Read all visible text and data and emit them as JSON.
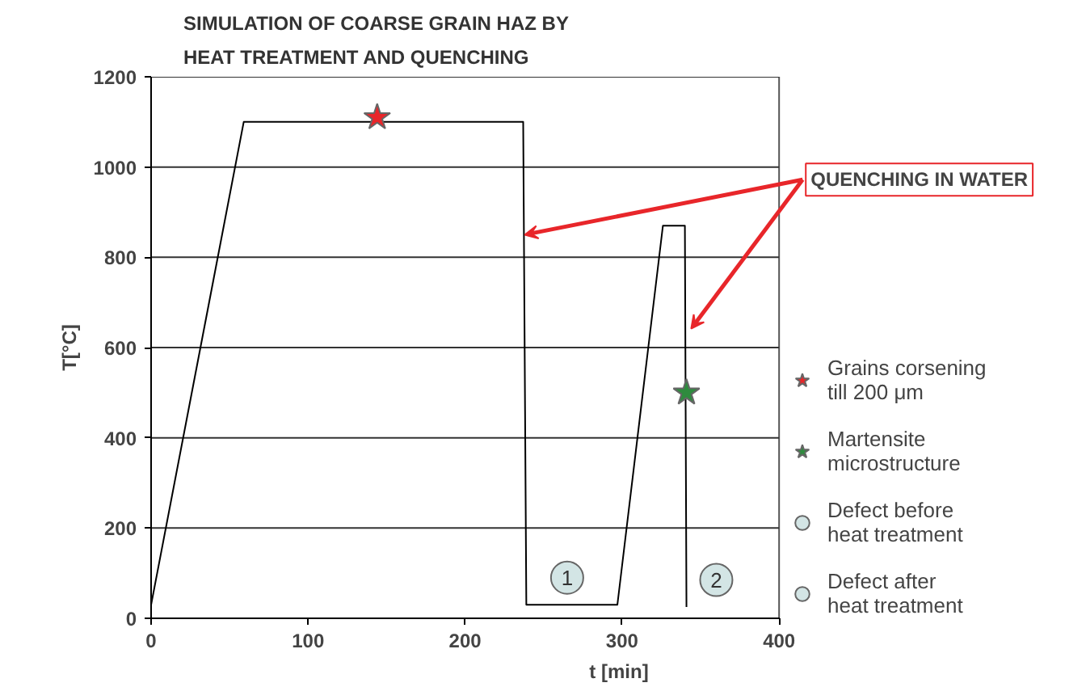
{
  "chart_data": {
    "type": "line",
    "title": "SIMULATION OF COARSE GRAIN HAZ BY\nHEAT TREATMENT AND QUENCHING",
    "xlabel": "t [min]",
    "ylabel": "T[°C]",
    "xlim": [
      0,
      400
    ],
    "xticks": [
      0,
      100,
      200,
      300,
      400
    ],
    "ylim": [
      0,
      1200
    ],
    "yticks": [
      0,
      200,
      400,
      600,
      800,
      1000,
      1200
    ],
    "grid": "y",
    "legend": "right",
    "series": [
      {
        "color": "#000000",
        "marker": "none",
        "x": [
          0,
          59,
          237,
          239,
          297,
          326,
          340,
          341
        ],
        "values": [
          30,
          1100,
          1100,
          30,
          30,
          870,
          870,
          25
        ]
      },
      {
        "type": "scatter",
        "name": "Grains corsening till 200 μm",
        "color": "#e8262a",
        "marker": "star",
        "x": [
          144
        ],
        "values": [
          1110
        ]
      },
      {
        "type": "scatter",
        "name": "Martensite microstructure",
        "color": "#2e8b3e",
        "marker": "star",
        "x": [
          341
        ],
        "values": [
          500
        ]
      },
      {
        "type": "scatter",
        "name": "Defect before heat treatment",
        "color": "#d3e5e5",
        "marker": "circle",
        "x": [
          265
        ],
        "values": [
          90
        ]
      },
      {
        "type": "scatter",
        "name": "Defect after heat treatment",
        "color": "#d3e5e5",
        "marker": "circle",
        "x": [
          360
        ],
        "values": [
          85
        ]
      }
    ],
    "annotations": [
      {
        "text": "QUENCHING IN WATER",
        "x": 238,
        "y": 850
      },
      {
        "text": "1",
        "x": 265,
        "y": 90
      },
      {
        "text": "2",
        "x": 360,
        "y": 85
      }
    ]
  }
}
